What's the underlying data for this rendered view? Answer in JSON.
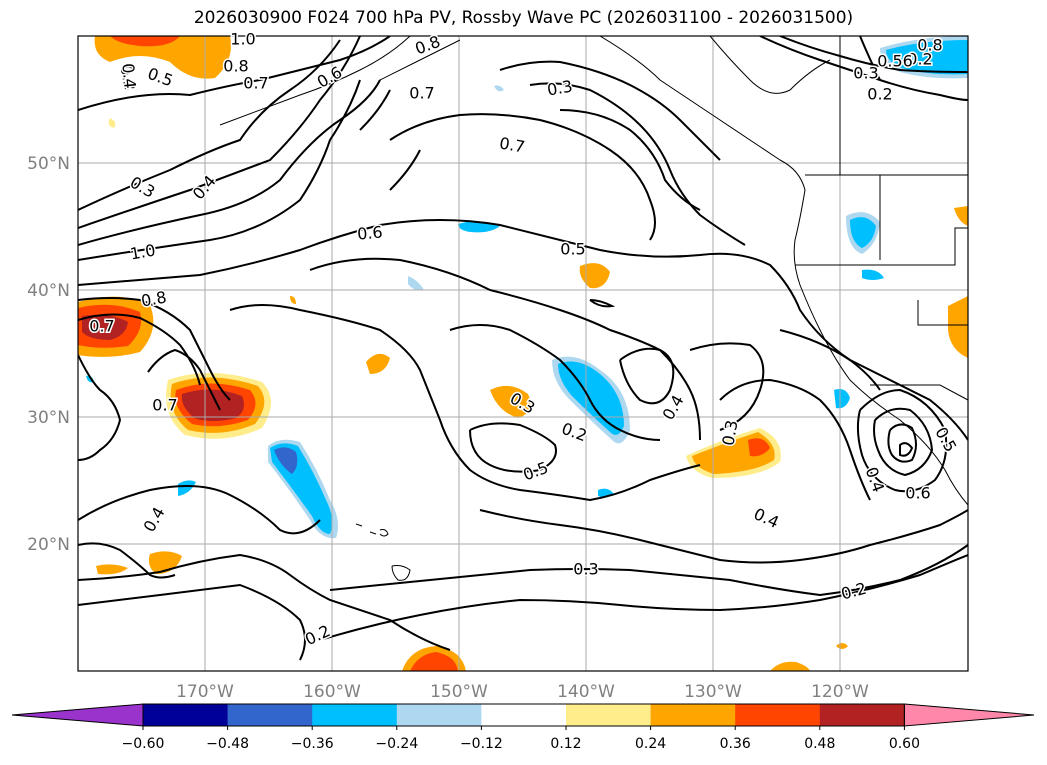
{
  "title": "2026030900 F024 700 hPa PV, Rossby Wave PC (2026031100 - 2026031500)",
  "lat_labels": [
    "50°N",
    "40°N",
    "30°N",
    "20°N"
  ],
  "lon_labels": [
    "170°W",
    "160°W",
    "150°W",
    "140°W",
    "130°W",
    "120°W"
  ],
  "contour_labels": [
    "0.5",
    "1.0",
    "0.8",
    "0.7",
    "0.6",
    "0.8",
    "0.7",
    "0.3",
    "0.4",
    "0.7",
    "0.3",
    "0.4",
    "0.6",
    "0.5",
    "1.0",
    "0.8",
    "0.7",
    "0.7",
    "0.3",
    "0.2",
    "0.4",
    "0.3",
    "0.5",
    "0.3",
    "0.4",
    "0.4",
    "0.2",
    "0.3",
    "0.2",
    "0.5",
    "0.4",
    "0.6",
    "0.2",
    "0.8",
    "0.3",
    "0.2",
    "0.56"
  ],
  "colorbar": {
    "tick_labels": [
      "−0.60",
      "−0.48",
      "−0.36",
      "−0.24",
      "−0.12",
      "0.12",
      "0.24",
      "0.36",
      "0.48",
      "0.60"
    ],
    "colors": [
      "#9933cc",
      "#000099",
      "#3366cc",
      "#00bfff",
      "#add8f0",
      "#ffffff",
      "#ffec8b",
      "#ffa500",
      "#ff4500",
      "#b22222",
      "#ff88aa"
    ]
  }
}
